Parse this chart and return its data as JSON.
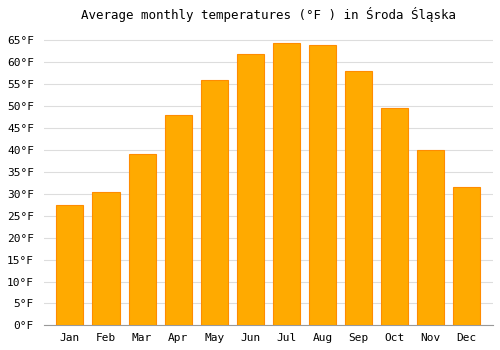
{
  "title": "Average monthly temperatures (°F ) in Środa Śląska",
  "months": [
    "Jan",
    "Feb",
    "Mar",
    "Apr",
    "May",
    "Jun",
    "Jul",
    "Aug",
    "Sep",
    "Oct",
    "Nov",
    "Dec"
  ],
  "values": [
    27.5,
    30.5,
    39.0,
    48.0,
    56.0,
    62.0,
    64.5,
    64.0,
    58.0,
    49.5,
    40.0,
    31.5
  ],
  "bar_color": "#FFAA00",
  "bar_edge_color": "#FF8C00",
  "background_color": "#FFFFFF",
  "grid_color": "#DDDDDD",
  "ylim": [
    0,
    68
  ],
  "yticks": [
    0,
    5,
    10,
    15,
    20,
    25,
    30,
    35,
    40,
    45,
    50,
    55,
    60,
    65
  ],
  "tick_label_suffix": "°F",
  "title_fontsize": 9,
  "tick_fontsize": 8,
  "bar_width": 0.75
}
